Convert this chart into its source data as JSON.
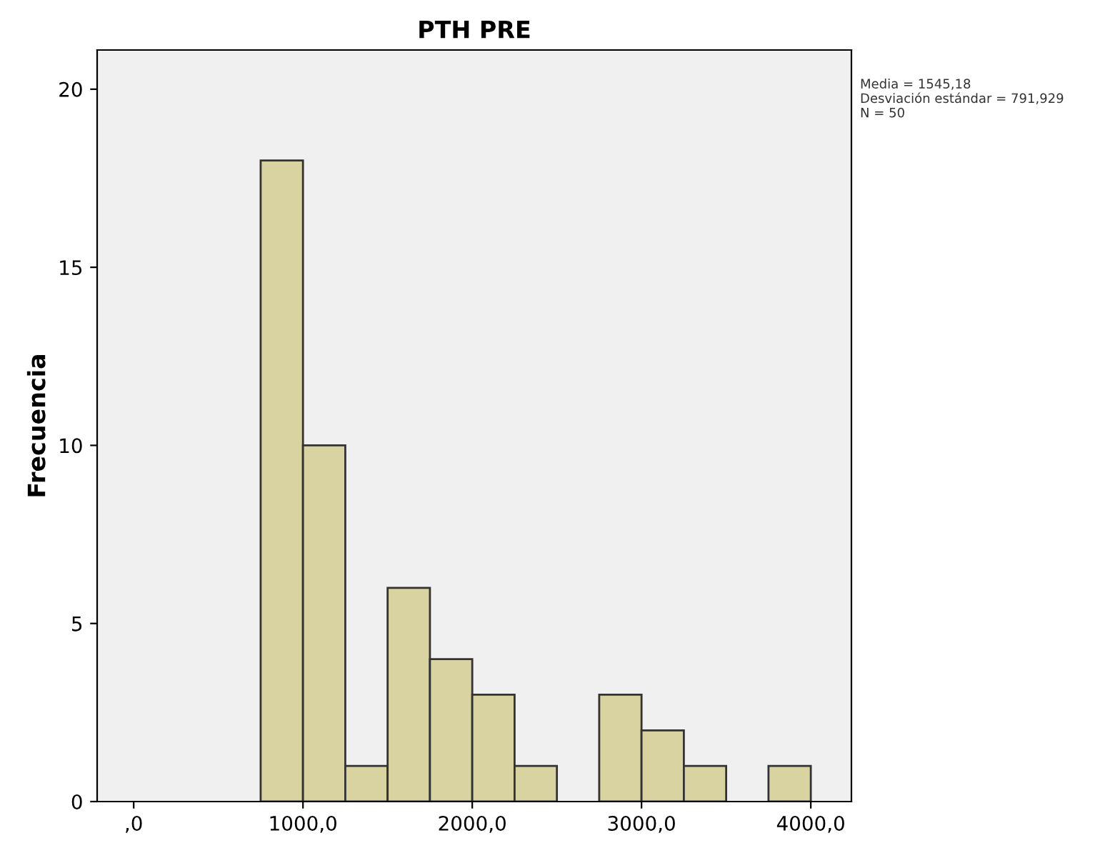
{
  "chart_data": {
    "type": "histogram",
    "title": "PTH PRE",
    "ylabel": "Frecuencia",
    "bins": [
      750,
      1000,
      1250,
      1500,
      1750,
      2000,
      2250,
      2500,
      2750,
      3000,
      3250,
      3500,
      3750,
      4000
    ],
    "values": [
      18,
      10,
      1,
      6,
      4,
      3,
      1,
      0,
      3,
      2,
      1,
      0,
      1
    ],
    "color": "#d8d3a0",
    "xlim": [
      -216,
      4240
    ],
    "xticks": [
      {
        "value": 0,
        "label": ",0"
      },
      {
        "value": 1000,
        "label": "1000,0"
      },
      {
        "value": 2000,
        "label": "2000,0"
      },
      {
        "value": 3000,
        "label": "3000,0"
      },
      {
        "value": 4000,
        "label": "4000,0"
      }
    ],
    "ylim": [
      0,
      21.1
    ],
    "yticks": [
      0,
      5,
      10,
      15,
      20
    ],
    "grid": false,
    "annotations": [
      "Media = 1545,18\nDesviación estándar = 791,929\nN = 50"
    ]
  }
}
